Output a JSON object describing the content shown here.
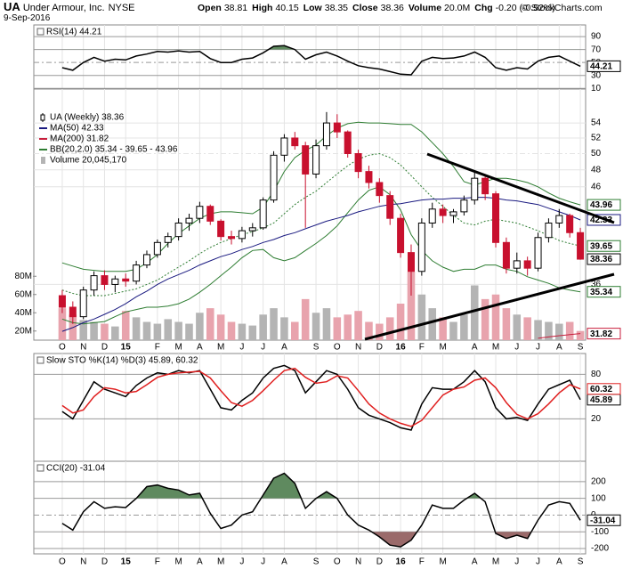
{
  "header": {
    "symbol": "UA",
    "name": "Under Armour, Inc.",
    "exchange": "NYSE",
    "date": "9-Sep-2016",
    "copyright": "© StockCharts.com",
    "quote": [
      {
        "label": "Open",
        "value": 38.81
      },
      {
        "label": "High",
        "value": 40.15
      },
      {
        "label": "Low",
        "value": 38.35
      },
      {
        "label": "Close",
        "value": 38.36
      },
      {
        "label": "Volume",
        "value": "20.0M"
      },
      {
        "label": "Chg",
        "value": "-0.20 (-0.52%)"
      }
    ]
  },
  "chart_data": [
    {
      "type": "line",
      "title": "RSI(14) 44.21",
      "series": [
        {
          "name": "RSI(14)",
          "color": "#000000",
          "values": [
            42,
            38,
            50,
            58,
            52,
            55,
            54,
            60,
            63,
            67,
            66,
            68,
            66,
            67,
            56,
            50,
            50,
            55,
            57,
            65,
            75,
            76,
            70,
            55,
            62,
            66,
            60,
            52,
            45,
            42,
            40,
            36,
            32,
            31,
            52,
            58,
            56,
            57,
            60,
            66,
            58,
            42,
            38,
            42,
            40,
            52,
            58,
            60,
            52,
            44.21
          ]
        }
      ],
      "ylim": [
        9,
        108
      ],
      "yticks": [
        90,
        70,
        50,
        30,
        10
      ],
      "grid": true,
      "fill_above": {
        "value": 70,
        "color": "#5f8a5f"
      }
    },
    {
      "type": "candlestick",
      "name": "UA (Weekly) 38.36",
      "up_color": "#000000",
      "down_color": "#c8102e",
      "categories": [
        "O",
        null,
        "N",
        null,
        "D",
        null,
        "15",
        null,
        null,
        "F",
        null,
        "M",
        null,
        "A",
        null,
        "M",
        null,
        "J",
        null,
        "J",
        null,
        "A",
        null,
        null,
        "S",
        null,
        "O",
        null,
        "N",
        null,
        "D",
        null,
        "16",
        null,
        "F",
        null,
        "M",
        null,
        null,
        "A",
        null,
        "M",
        null,
        "J",
        null,
        "J",
        null,
        "A",
        null,
        "S"
      ],
      "ohlc": [
        [
          35,
          35.5,
          33.5,
          34
        ],
        [
          34,
          34.5,
          32.6,
          33.2
        ],
        [
          33.2,
          35.8,
          33,
          35.5
        ],
        [
          35.5,
          37.2,
          35,
          36.8
        ],
        [
          36.8,
          37.3,
          35.5,
          36
        ],
        [
          36,
          36.8,
          35.3,
          36.5
        ],
        [
          36.5,
          37,
          35.8,
          36.3
        ],
        [
          36.3,
          38.2,
          36,
          37.8
        ],
        [
          37.8,
          39.2,
          37.5,
          38.8
        ],
        [
          38.8,
          40.3,
          38.5,
          40
        ],
        [
          40,
          41,
          39.5,
          40.6
        ],
        [
          40.6,
          42.5,
          40.2,
          42
        ],
        [
          42,
          43,
          41.2,
          42.5
        ],
        [
          42.5,
          44.3,
          42,
          43.8
        ],
        [
          43.8,
          44,
          41.8,
          42.2
        ],
        [
          42.2,
          42.4,
          40.2,
          40.6
        ],
        [
          40.6,
          41.2,
          39.8,
          40.4
        ],
        [
          40.4,
          41.6,
          40,
          41.2
        ],
        [
          41.2,
          42,
          40.6,
          41.5
        ],
        [
          41.5,
          44.8,
          41.3,
          44.5
        ],
        [
          44.5,
          50.3,
          44.2,
          49.8
        ],
        [
          49.8,
          52.5,
          49,
          52
        ],
        [
          52,
          52.8,
          50.5,
          51
        ],
        [
          51,
          51.5,
          41.5,
          47.5
        ],
        [
          47.5,
          51.8,
          47,
          51
        ],
        [
          51,
          55.5,
          50.5,
          54
        ],
        [
          54,
          55.2,
          52,
          52.8
        ],
        [
          52.8,
          53,
          49.5,
          50
        ],
        [
          50,
          50.5,
          47,
          47.8
        ],
        [
          47.8,
          48.5,
          45.8,
          46.5
        ],
        [
          46.5,
          47,
          44.2,
          45
        ],
        [
          45,
          45.5,
          41.8,
          42.5
        ],
        [
          42.5,
          43,
          38.5,
          39
        ],
        [
          39,
          39.8,
          35,
          37.2
        ],
        [
          37.2,
          42.5,
          36.8,
          42
        ],
        [
          42,
          44.2,
          41.5,
          43.5
        ],
        [
          43.5,
          44,
          42,
          42.8
        ],
        [
          42.8,
          43.5,
          42,
          43.2
        ],
        [
          43.2,
          45,
          42.8,
          44.5
        ],
        [
          44.5,
          47.8,
          44,
          47
        ],
        [
          47,
          47.5,
          44.5,
          45.2
        ],
        [
          45.2,
          45.5,
          39.5,
          40
        ],
        [
          40,
          40.5,
          37,
          37.5
        ],
        [
          37.5,
          39,
          37,
          38.2
        ],
        [
          38.2,
          38.6,
          36.8,
          37.5
        ],
        [
          37.5,
          41,
          37.2,
          40.5
        ],
        [
          40.5,
          42.5,
          40,
          42
        ],
        [
          42,
          43.5,
          41.5,
          42.8
        ],
        [
          42.8,
          43,
          40.5,
          41
        ],
        [
          41,
          41.5,
          38.3,
          38.36
        ]
      ],
      "series": [
        {
          "name": "MA(50) 42.33",
          "color": "#1a1a80",
          "values": [
            32.0,
            32.3,
            32.7,
            33.0,
            33.4,
            33.8,
            34.3,
            34.9,
            35.4,
            36.0,
            36.5,
            36.9,
            37.3,
            37.8,
            38.2,
            38.6,
            38.9,
            39.3,
            39.6,
            40.0,
            40.3,
            40.7,
            41.0,
            41.4,
            41.8,
            42.2,
            42.5,
            42.8,
            43.2,
            43.5,
            43.8,
            44.0,
            44.1,
            44.3,
            44.5,
            44.6,
            44.6,
            44.7,
            44.7,
            44.8,
            44.8,
            44.7,
            44.5,
            44.4,
            44.2,
            44.0,
            43.6,
            43.2,
            42.8,
            42.33
          ]
        },
        {
          "name": "MA(200) 31.82",
          "color": "#c81e3c",
          "values": [
            null,
            null,
            null,
            null,
            null,
            null,
            null,
            null,
            null,
            null,
            null,
            null,
            null,
            null,
            null,
            null,
            null,
            null,
            null,
            null,
            null,
            null,
            null,
            null,
            null,
            null,
            null,
            null,
            null,
            null,
            null,
            null,
            null,
            null,
            null,
            null,
            null,
            null,
            null,
            null,
            null,
            null,
            null,
            null,
            null,
            31.45,
            31.55,
            31.65,
            31.74,
            31.82
          ]
        }
      ],
      "bands": {
        "name": "BB(20,2.0) 35.34 - 39.65 - 43.96",
        "color": "#2e7d32",
        "upper": [
          38,
          37.7,
          37.4,
          37.3,
          37.2,
          37.2,
          37.2,
          37.4,
          38,
          38.8,
          39.9,
          40.9,
          41.7,
          42.5,
          43,
          43.2,
          43.2,
          43.1,
          43,
          43.7,
          45.5,
          47.8,
          49.5,
          50.4,
          51.1,
          52.3,
          53.3,
          53.9,
          54.1,
          54,
          54,
          53.9,
          53.8,
          53.8,
          52.8,
          51.4,
          50,
          48.4,
          46.6,
          46.2,
          46.6,
          47,
          47,
          46.8,
          46.5,
          46,
          45.3,
          44.7,
          44.3,
          43.96
        ],
        "middle": [
          35.5,
          35.2,
          35,
          35,
          35,
          35.2,
          35.4,
          35.6,
          36,
          36.4,
          37,
          37.6,
          38.2,
          38.9,
          39.5,
          40,
          40.4,
          40.8,
          41.1,
          41.5,
          42,
          43,
          44,
          44.8,
          45.5,
          46.5,
          47.5,
          48.5,
          49.3,
          49.8,
          50,
          49.5,
          48.6,
          47.3,
          46,
          44.8,
          43.8,
          42.8,
          42,
          41.8,
          42.2,
          42.4,
          42.2,
          42,
          41.6,
          41.2,
          40.7,
          40.2,
          39.9,
          39.65
        ],
        "lower": [
          33,
          32.7,
          32.6,
          32.7,
          32.8,
          33.2,
          33.6,
          33.8,
          34,
          34,
          34.1,
          34.3,
          34.7,
          35.3,
          36,
          36.8,
          37.6,
          38.5,
          39.2,
          39.3,
          38.5,
          38.2,
          38.5,
          39.2,
          39.9,
          40.7,
          41.7,
          43.1,
          44.5,
          45.6,
          46,
          45.1,
          43.4,
          40.8,
          39.2,
          38.2,
          37.6,
          37.2,
          37.4,
          37.4,
          37.8,
          37.8,
          37.4,
          37.2,
          36.7,
          36.4,
          36.1,
          35.7,
          35.5,
          35.34
        ]
      },
      "volume": {
        "name": "Volume 20,045,170",
        "up_color": "#b4b4b4",
        "down_color": "#e8a3ad",
        "values": [
          45000000,
          38000000,
          32000000,
          30000000,
          28000000,
          25000000,
          42000000,
          35000000,
          30000000,
          28000000,
          33000000,
          30000000,
          28000000,
          40000000,
          45000000,
          38000000,
          30000000,
          28000000,
          26000000,
          38000000,
          45000000,
          35000000,
          30000000,
          55000000,
          40000000,
          45000000,
          35000000,
          38000000,
          42000000,
          30000000,
          28000000,
          35000000,
          50000000,
          85000000,
          60000000,
          45000000,
          35000000,
          30000000,
          38000000,
          70000000,
          55000000,
          60000000,
          45000000,
          38000000,
          35000000,
          32000000,
          30000000,
          28000000,
          30000000,
          20045170
        ],
        "ylim": [
          10000000,
          90000000
        ],
        "yticks": [
          {
            "value": 80000000,
            "label": "80M"
          },
          {
            "value": 60000000,
            "label": "60M"
          },
          {
            "value": 40000000,
            "label": "40M"
          },
          {
            "value": 20000000,
            "label": "20M"
          }
        ]
      },
      "ylim": [
        31.3,
        58.8
      ],
      "yticks": [
        54,
        52,
        50,
        48,
        46,
        36
      ],
      "log_scale": true,
      "grid": true
    },
    {
      "type": "line",
      "title": "Slow STO %K(14) %D(3) 45.89, 60.32",
      "series": [
        {
          "name": "%K(14)",
          "color": "#000000",
          "values": [
            30,
            20,
            45,
            70,
            60,
            55,
            50,
            65,
            75,
            82,
            80,
            85,
            82,
            85,
            60,
            35,
            32,
            45,
            55,
            75,
            88,
            92,
            85,
            55,
            70,
            85,
            80,
            60,
            35,
            25,
            20,
            15,
            8,
            5,
            40,
            62,
            60,
            60,
            70,
            85,
            70,
            35,
            20,
            22,
            18,
            40,
            60,
            66,
            72,
            45.89
          ]
        },
        {
          "name": "%D(3)",
          "color": "#e02020",
          "values": [
            38,
            28,
            32,
            50,
            62,
            60,
            55,
            57,
            66,
            76,
            80,
            82,
            83,
            84,
            75,
            58,
            42,
            37,
            45,
            58,
            72,
            85,
            88,
            76,
            68,
            70,
            78,
            75,
            58,
            40,
            28,
            20,
            14,
            10,
            18,
            35,
            52,
            60,
            63,
            72,
            75,
            62,
            42,
            26,
            20,
            27,
            40,
            55,
            66,
            60.32
          ]
        }
      ],
      "ylim": [
        -37,
        108
      ],
      "yticks": [
        80,
        20
      ],
      "grid": true
    },
    {
      "type": "line",
      "title": "CCI(20) -31.04",
      "categories": [
        "O",
        null,
        "N",
        null,
        "D",
        null,
        "15",
        null,
        null,
        "F",
        null,
        "M",
        null,
        "A",
        null,
        "M",
        null,
        "J",
        null,
        "J",
        null,
        "A",
        null,
        null,
        "S",
        null,
        "O",
        null,
        "N",
        null,
        "D",
        null,
        "16",
        null,
        "F",
        null,
        "M",
        null,
        null,
        "A",
        null,
        "M",
        null,
        "J",
        null,
        "J",
        null,
        "A",
        null,
        "S"
      ],
      "series": [
        {
          "name": "CCI(20)",
          "color": "#000000",
          "values": [
            -50,
            -90,
            20,
            80,
            40,
            50,
            45,
            100,
            170,
            180,
            160,
            150,
            120,
            130,
            10,
            -80,
            -60,
            0,
            20,
            120,
            220,
            250,
            190,
            40,
            100,
            140,
            100,
            0,
            -60,
            -90,
            -130,
            -180,
            -190,
            -150,
            -60,
            60,
            40,
            40,
            90,
            130,
            80,
            -110,
            -140,
            -120,
            -140,
            -30,
            60,
            80,
            70,
            -31.04
          ]
        }
      ],
      "ylim": [
        -232,
        322
      ],
      "yticks": [
        200,
        100,
        0,
        -100,
        -200
      ],
      "grid": true,
      "fill_above": {
        "value": 100,
        "color": "#5f8a5f"
      },
      "fill_below": {
        "value": -100,
        "color": "#9a6a6a"
      }
    }
  ]
}
